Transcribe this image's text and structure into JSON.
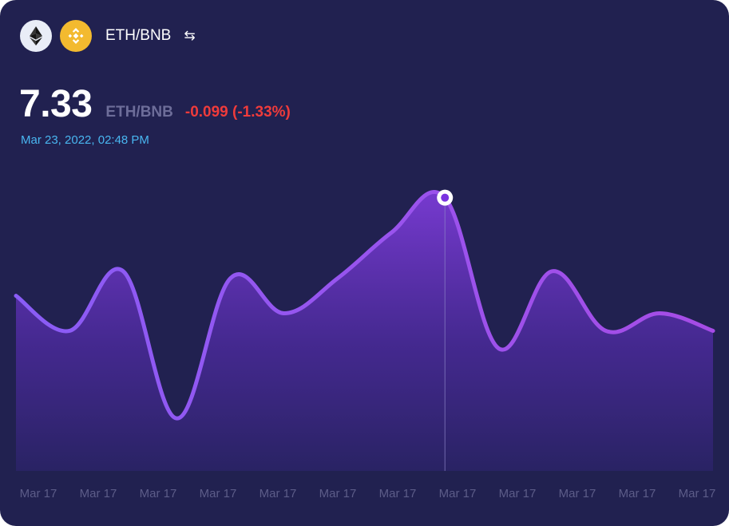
{
  "header": {
    "base_icon": "ethereum-icon",
    "quote_icon": "binance-coin-icon",
    "pair": "ETH/BNB",
    "swap_icon": "swap-arrows-icon",
    "swap_glyph": "⇆"
  },
  "price": {
    "value": "7.33",
    "unit": "ETH/BNB",
    "change": "-0.099 (-1.33%)",
    "timestamp": "Mar 23, 2022, 02:48 PM"
  },
  "colors": {
    "background": "#212150",
    "line_start": "#8a5cf6",
    "line_end": "#a64ce6",
    "negative": "#ef3b3b",
    "timestamp": "#49b6f0"
  },
  "chart_data": {
    "type": "area",
    "title": "",
    "xlabel": "",
    "ylabel": "",
    "x_ticks": [
      "Mar 17",
      "Mar 17",
      "Mar 17",
      "Mar 17",
      "Mar 17",
      "Mar 17",
      "Mar 17",
      "Mar 17",
      "Mar 17",
      "Mar 17",
      "Mar 17",
      "Mar 17"
    ],
    "values": [
      7.05,
      6.95,
      7.12,
      6.7,
      7.1,
      7.0,
      7.1,
      7.23,
      7.33,
      6.9,
      7.12,
      6.95,
      7.0,
      6.95
    ],
    "ylim": [
      6.55,
      7.45
    ],
    "highlight_index": 8,
    "highlight_value": 7.33,
    "grid": false,
    "legend": "none"
  }
}
